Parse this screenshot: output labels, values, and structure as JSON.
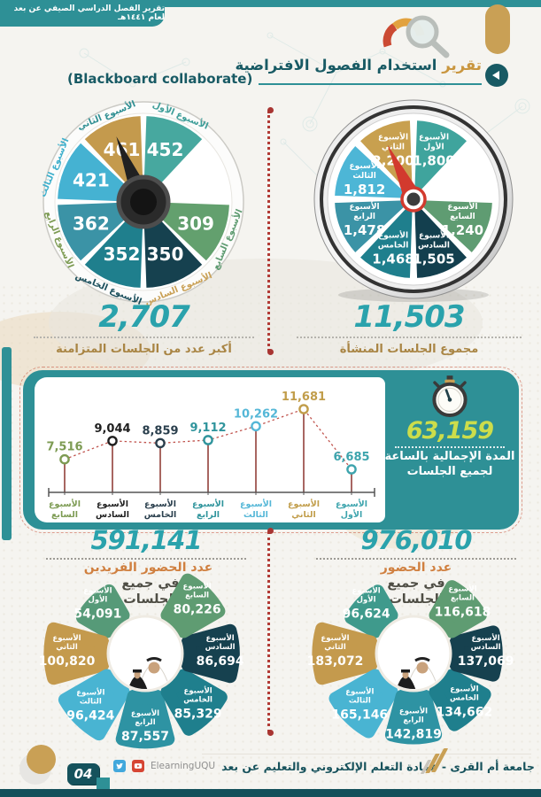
{
  "banner": {
    "text": "تقرير الفصل الدراسي الصيفي عن بعد لعام ١٤٤١هـ"
  },
  "header": {
    "title_accent": "تقرير",
    "title_rest": " استخدام الفصول الافتراضية",
    "subtitle": "(Blackboard collaborate)"
  },
  "weeks": [
    "الأسبوع الأول",
    "الأسبوع الثاني",
    "الأسبوع الثالث",
    "الأسبوع الرابع",
    "الأسبوع الخامس",
    "الأسبوع السادس",
    "الأسبوع السابع"
  ],
  "stats": {
    "created": {
      "value": "11,503",
      "label": "مجموع الجلسات المنشأة"
    },
    "concurrent": {
      "value": "2,707",
      "label": "أكبر عدد من الجلسات المتزامنة"
    },
    "hours": {
      "value": "63,159",
      "label1": "المدة الإجمالية بالساعة",
      "label2": "لجميع الجلسات"
    },
    "unique": {
      "value": "591,141",
      "accent": "عدد الحضور الفريدين",
      "line2": "في جميع",
      "line3": "الجلسات"
    },
    "total": {
      "value": "976,010",
      "accent": "عدد الحضور",
      "line2": "في جميع",
      "line3": "الجلسات"
    }
  },
  "footer": {
    "org": "جامعة أم القرى - عمادة التعلم الإلكتروني والتعليم عن بعد",
    "social": "ElearningUQU",
    "page": "04"
  },
  "chart_data": [
    {
      "type": "pie",
      "variant": "wheel",
      "title": "أكبر عدد من الجلسات المتزامنة",
      "total_display": "2,707",
      "categories": [
        "الأسبوع الأول",
        "الأسبوع الثاني",
        "الأسبوع الثالث",
        "الأسبوع الرابع",
        "الأسبوع الخامس",
        "الأسبوع السادس",
        "الأسبوع السابع"
      ],
      "values": [
        452,
        461,
        421,
        362,
        352,
        350,
        309
      ],
      "display": [
        "452",
        "461",
        "421",
        "362",
        "352",
        "350",
        "309"
      ],
      "colors": [
        "#47a89f",
        "#c49a4d",
        "#45b2d2",
        "#3b93a6",
        "#1f7f8d",
        "#16414f",
        "#63a06e"
      ],
      "label_colors": [
        "#3f9e99",
        "#2f8f93",
        "#3fb0cc",
        "#7d9b53",
        "#1b4f5c",
        "#c9a055",
        "#5f9c72"
      ],
      "needle_week_index": 1
    },
    {
      "type": "pie",
      "variant": "gauge",
      "title": "مجموع الجلسات المنشأة",
      "total_display": "11,503",
      "categories": [
        "الأسبوع الأول",
        "الأسبوع الثاني",
        "الأسبوع الثالث",
        "الأسبوع الرابع",
        "الأسبوع الخامس",
        "الأسبوع السادس",
        "الأسبوع السابع"
      ],
      "values": [
        1800,
        2200,
        1812,
        1478,
        1468,
        1505,
        1240
      ],
      "display": [
        "1,800",
        "2,200",
        "1,812",
        "1,478",
        "1,468",
        "1,505",
        "1,240"
      ],
      "colors": [
        "#3fa49d",
        "#c8a04f",
        "#4db6d6",
        "#3b93a6",
        "#1f7f8d",
        "#133f4e",
        "#5f9c72"
      ],
      "needle_week_index": 1
    },
    {
      "type": "line",
      "variant": "lollipop",
      "title": "المدة الإجمالية بالساعة لجميع الجلسات",
      "total_display": "63,159",
      "xlabel": "",
      "ylabel": "",
      "ylim": [
        6000,
        12200
      ],
      "grid": false,
      "points": [
        {
          "week": "الأسبوع السابع",
          "value": 7516,
          "display": "7,516",
          "color": "#7d9b53"
        },
        {
          "week": "الأسبوع السادس",
          "value": 9044,
          "display": "9,044",
          "color": "#1f1f1f"
        },
        {
          "week": "الأسبوع الخامس",
          "value": 8859,
          "display": "8,859",
          "color": "#2a3f4d"
        },
        {
          "week": "الأسبوع الرابع",
          "value": 9112,
          "display": "9,112",
          "color": "#2f949c"
        },
        {
          "week": "الأسبوع الثالث",
          "value": 10262,
          "display": "10,262",
          "color": "#55b7d7"
        },
        {
          "week": "الأسبوع الثاني",
          "value": 11681,
          "display": "11,681",
          "color": "#c19d4a"
        },
        {
          "week": "الأسبوع الأول",
          "value": 6685,
          "display": "6,685",
          "color": "#3da4ad"
        }
      ]
    },
    {
      "type": "pie",
      "variant": "fan",
      "title": "عدد الحضور الفريدين في جميع الجلسات",
      "total_display": "591,141",
      "categories": [
        "الأسبوع الأول",
        "الأسبوع الثاني",
        "الأسبوع الثالث",
        "الأسبوع الرابع",
        "الأسبوع الخامس",
        "الأسبوع السادس",
        "الأسبوع السابع"
      ],
      "values": [
        54091,
        100820,
        96424,
        87557,
        85329,
        86694,
        80226
      ],
      "display": [
        "54,091",
        "100,820",
        "96,424",
        "87,557",
        "85,329",
        "86,694",
        "80,226"
      ],
      "colors": [
        "#569a78",
        "#c49a4d",
        "#49b4d2",
        "#2e93a3",
        "#1f7f8d",
        "#16414f",
        "#5f9c72"
      ]
    },
    {
      "type": "pie",
      "variant": "fan",
      "title": "عدد الحضور في جميع الجلسات",
      "total_display": "976,010",
      "categories": [
        "الأسبوع الأول",
        "الأسبوع الثاني",
        "الأسبوع الثالث",
        "الأسبوع الرابع",
        "الأسبوع الخامس",
        "الأسبوع السادس",
        "الأسبوع السابع"
      ],
      "values": [
        96624,
        183072,
        165146,
        142819,
        134662,
        137069,
        116618
      ],
      "display": [
        "96,624",
        "183,072",
        "165,146",
        "142,819",
        "134,662",
        "137,069",
        "116,618"
      ],
      "colors": [
        "#3f9a8c",
        "#c49a4d",
        "#49b4d2",
        "#2e93a3",
        "#1f7f8d",
        "#16414f",
        "#5f9c72"
      ]
    }
  ],
  "palette": {
    "teal": "#2e9096",
    "dark_teal": "#185a64",
    "gold": "#c9a055",
    "number_teal": "#2aa2ac",
    "caption_brown": "#a98544",
    "red_dots": "#b23b36",
    "lime": "#ccdd4b"
  }
}
